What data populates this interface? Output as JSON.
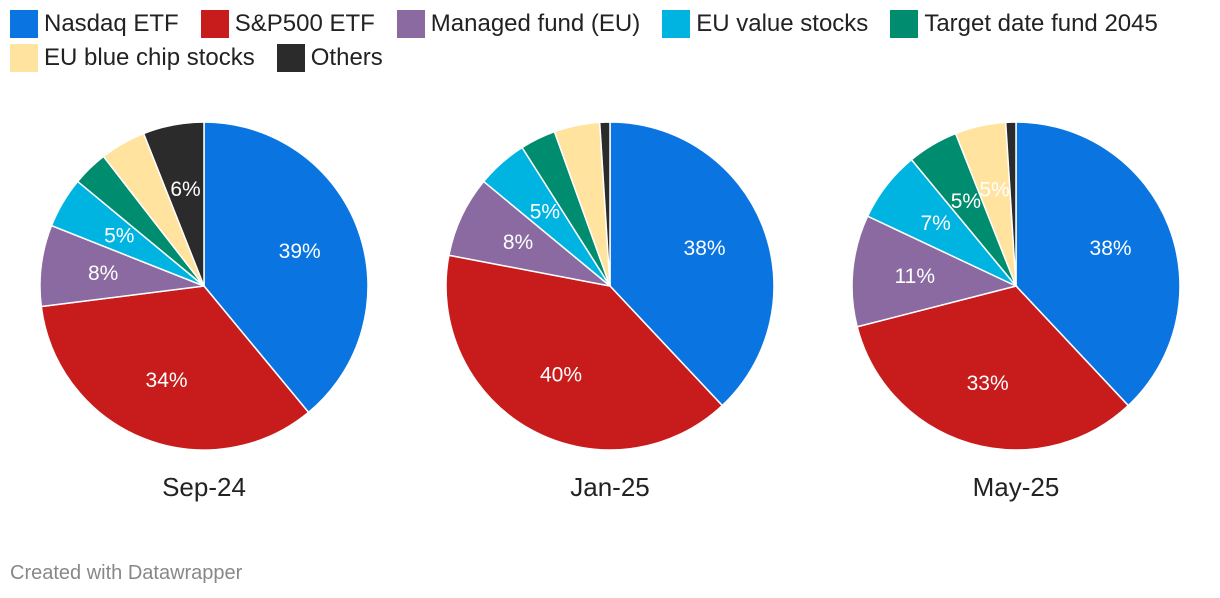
{
  "legend": [
    {
      "label": "Nasdaq ETF",
      "color": "#0a75e1"
    },
    {
      "label": "S&P500 ETF",
      "color": "#c81c1c"
    },
    {
      "label": "Managed fund (EU)",
      "color": "#8a6aa0"
    },
    {
      "label": "EU value stocks",
      "color": "#00b4e1"
    },
    {
      "label": "Target date fund 2045",
      "color": "#008c6e"
    },
    {
      "label": "EU blue chip stocks",
      "color": "#ffe39e"
    },
    {
      "label": "Others",
      "color": "#2b2b2b"
    }
  ],
  "chart_data": {
    "type": "pie",
    "categories": [
      "Nasdaq ETF",
      "S&P500 ETF",
      "Managed fund (EU)",
      "EU value stocks",
      "Target date fund 2045",
      "EU blue chip stocks",
      "Others"
    ],
    "pies": [
      {
        "title": "Sep-24",
        "values": [
          39,
          34,
          8,
          5,
          3.5,
          4.5,
          6
        ],
        "labels": [
          "39%",
          "34%",
          "8%",
          "5%",
          "",
          "",
          "6%"
        ]
      },
      {
        "title": "Jan-25",
        "values": [
          38,
          40,
          8,
          5,
          3.5,
          4.5,
          1
        ],
        "labels": [
          "38%",
          "40%",
          "8%",
          "5%",
          "",
          "",
          ""
        ]
      },
      {
        "title": "May-25",
        "values": [
          38,
          33,
          11,
          7,
          5,
          5,
          1
        ],
        "labels": [
          "38%",
          "33%",
          "11%",
          "7%",
          "5%",
          "5%",
          ""
        ]
      }
    ]
  },
  "footer": "Created with Datawrapper"
}
